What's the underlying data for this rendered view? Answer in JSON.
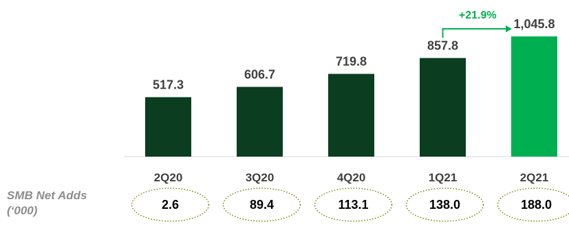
{
  "chart_data": {
    "type": "bar",
    "categories": [
      "2Q20",
      "3Q20",
      "4Q20",
      "1Q21",
      "2Q21"
    ],
    "values": [
      517.3,
      606.7,
      719.8,
      857.8,
      1045.8
    ],
    "value_labels": [
      "517.3",
      "606.7",
      "719.8",
      "857.8",
      "1,045.8"
    ],
    "colors": [
      "#0b3d20",
      "#0b3d20",
      "#0b3d20",
      "#0b3d20",
      "#00b050"
    ],
    "growth_annotation": {
      "text": "+21.9%",
      "from": "1Q21",
      "to": "2Q21",
      "color": "#00b050"
    },
    "grid": false,
    "legend": "none"
  },
  "net_adds": {
    "title_line1": "SMB Net Adds",
    "title_line2": "(‘000)",
    "values": [
      "2.6",
      "89.4",
      "113.1",
      "138.0",
      "188.0"
    ]
  }
}
